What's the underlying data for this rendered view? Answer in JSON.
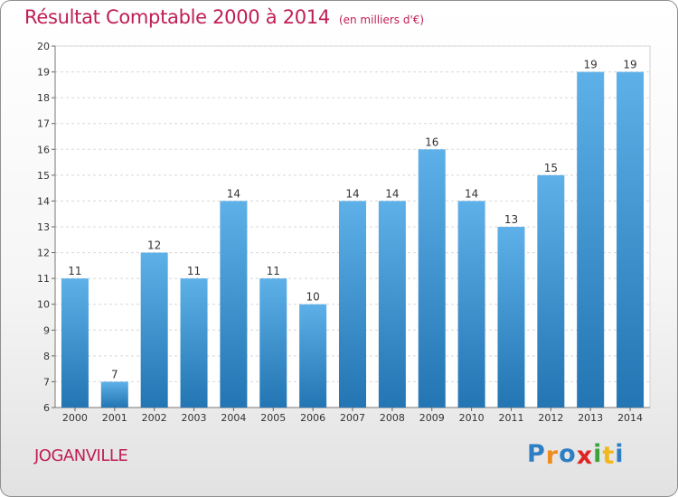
{
  "chart_data": {
    "type": "bar",
    "title": "Résultat Comptable 2000 à 2014",
    "subtitle": "(en milliers d'€)",
    "categories": [
      "2000",
      "2001",
      "2002",
      "2003",
      "2004",
      "2005",
      "2006",
      "2007",
      "2008",
      "2009",
      "2010",
      "2011",
      "2012",
      "2013",
      "2014"
    ],
    "values": [
      11,
      7,
      12,
      11,
      14,
      11,
      10,
      14,
      14,
      16,
      14,
      13,
      15,
      19,
      19
    ],
    "ylim": [
      6,
      20
    ],
    "yticks": [
      6,
      7,
      8,
      9,
      10,
      11,
      12,
      13,
      14,
      15,
      16,
      17,
      18,
      19,
      20
    ],
    "xlabel": "",
    "ylabel": "",
    "grid": true,
    "bar_color_top": "#5eb0e8",
    "bar_color_bottom": "#2375b3",
    "title_color": "#c01e55"
  },
  "location": "JOGANVILLE",
  "logo": {
    "letters": [
      "P",
      "r",
      "o",
      "x",
      "i",
      "t",
      "i"
    ],
    "colors": [
      "#2e7ec4",
      "#f08a1c",
      "#2e7ec4",
      "#e02323",
      "#3aa43a",
      "#f0b81c",
      "#2e7ec4"
    ]
  }
}
